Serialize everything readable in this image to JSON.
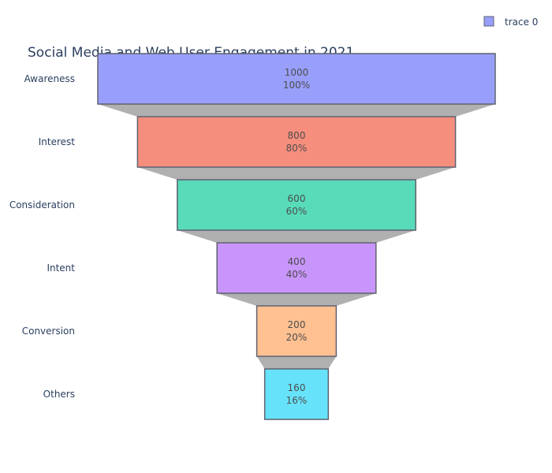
{
  "chart_data": {
    "type": "funnel",
    "title": "Social Media and Web User Engagement in 2021",
    "categories": [
      "Awareness",
      "Interest",
      "Consideration",
      "Intent",
      "Conversion",
      "Others"
    ],
    "values": [
      1000,
      800,
      600,
      400,
      200,
      160
    ],
    "percent_labels": [
      "100%",
      "80%",
      "60%",
      "40%",
      "20%",
      "16%"
    ],
    "colors": [
      "#989ffb",
      "#f58e7c",
      "#58dbb9",
      "#c896fb",
      "#ffc092",
      "#66e3fa"
    ],
    "connector_color": "#b0b0b0",
    "bar_outline_color": "#5f6270",
    "legend": {
      "entries": [
        "trace 0"
      ],
      "placement": "top-right",
      "swatch_color": "#989ffb"
    }
  }
}
